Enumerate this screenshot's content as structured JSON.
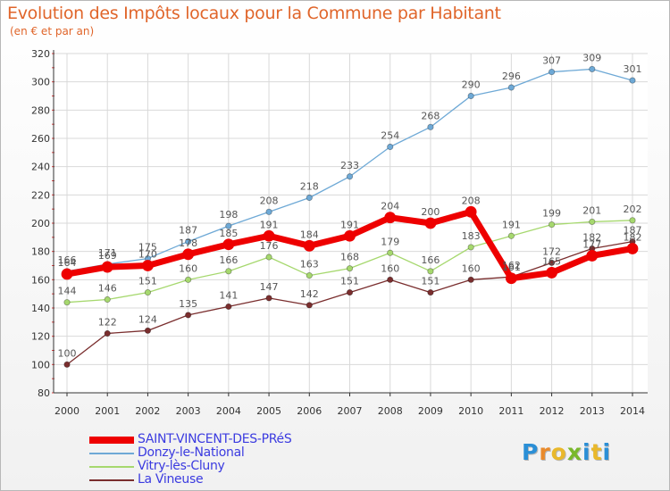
{
  "title": "Evolution des Impôts locaux pour la Commune par Habitant",
  "subtitle": "(en € et par an)",
  "logo": {
    "text": "Proxiti",
    "colors": [
      "#2b8fd6",
      "#e98a2b",
      "#e9b82b",
      "#79b82b",
      "#2b8fd6",
      "#e9b82b",
      "#2b8fd6"
    ]
  },
  "chart_data": {
    "type": "line",
    "x": [
      2000,
      2001,
      2002,
      2003,
      2004,
      2005,
      2006,
      2007,
      2008,
      2009,
      2010,
      2011,
      2012,
      2013,
      2014
    ],
    "ylim": [
      80,
      320
    ],
    "yticks": [
      80,
      100,
      120,
      140,
      160,
      180,
      200,
      220,
      240,
      260,
      280,
      300,
      320
    ],
    "grid": true,
    "legend_position": "bottom-left",
    "series": [
      {
        "name": "SAINT-VINCENT-DES-PRéS",
        "color": "#ee0000",
        "values": [
          164,
          169,
          170,
          178,
          185,
          191,
          184,
          191,
          204,
          200,
          208,
          161,
          165,
          177,
          182
        ]
      },
      {
        "name": "Donzy-le-National",
        "color": "#6ea9d6",
        "values": [
          166,
          171,
          175,
          187,
          198,
          208,
          218,
          233,
          254,
          268,
          290,
          296,
          307,
          309,
          301
        ]
      },
      {
        "name": "Vitry-lès-Cluny",
        "color": "#a6d86e",
        "values": [
          144,
          146,
          151,
          160,
          166,
          176,
          163,
          168,
          179,
          166,
          183,
          191,
          199,
          201,
          202
        ]
      },
      {
        "name": "La Vineuse",
        "color": "#7a2e2e",
        "values": [
          100,
          122,
          124,
          135,
          141,
          147,
          142,
          151,
          160,
          151,
          160,
          162,
          172,
          182,
          187
        ]
      }
    ]
  }
}
